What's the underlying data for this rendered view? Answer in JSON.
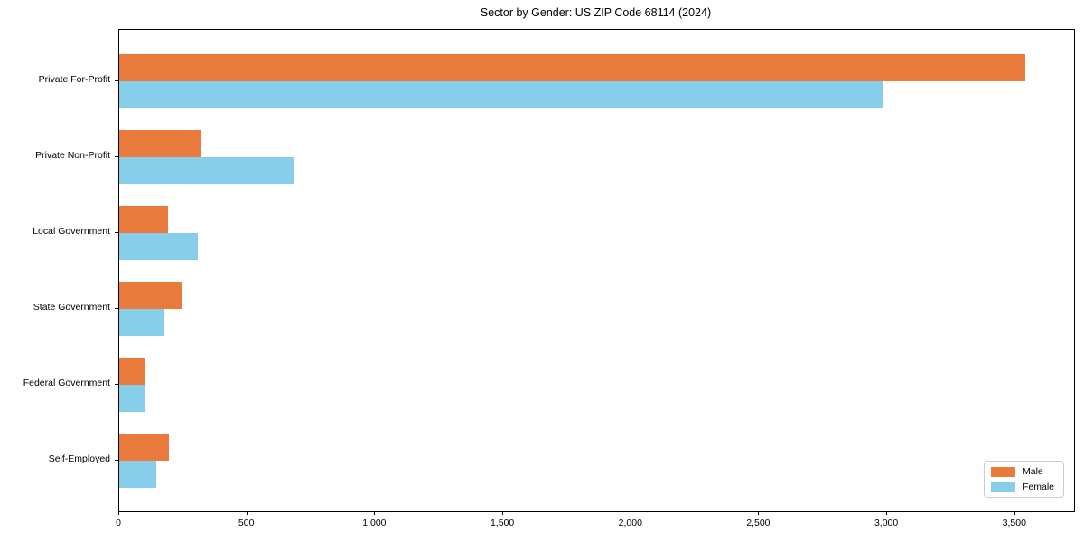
{
  "title": "Sector by Gender: US ZIP Code 68114 (2024)",
  "chart_data": {
    "type": "bar",
    "orientation": "horizontal",
    "title": "Sector by Gender: US ZIP Code 68114 (2024)",
    "categories": [
      "Private For-Profit",
      "Private Non-Profit",
      "Local Government",
      "State Government",
      "Federal Government",
      "Self-Employed"
    ],
    "series": [
      {
        "name": "Male",
        "color": "#e87a3c",
        "values": [
          3540,
          317,
          191,
          247,
          102,
          193
        ]
      },
      {
        "name": "Female",
        "color": "#87ceeb",
        "values": [
          2980,
          685,
          308,
          173,
          100,
          145
        ]
      }
    ],
    "xlabel": "",
    "ylabel": "",
    "xlim": [
      0,
      3730
    ],
    "xticks": [
      0,
      500,
      1000,
      1500,
      2000,
      2500,
      3000,
      3500
    ],
    "xtick_labels": [
      "0",
      "500",
      "1,000",
      "1,500",
      "2,000",
      "2,500",
      "3,000",
      "3,500"
    ],
    "grid": false,
    "legend": {
      "position": "lower right",
      "entries": [
        "Male",
        "Female"
      ]
    },
    "colors": {
      "male": "#e87a3c",
      "female": "#87ceeb",
      "axis": "#000000",
      "legend_border": "#cccccc"
    }
  }
}
